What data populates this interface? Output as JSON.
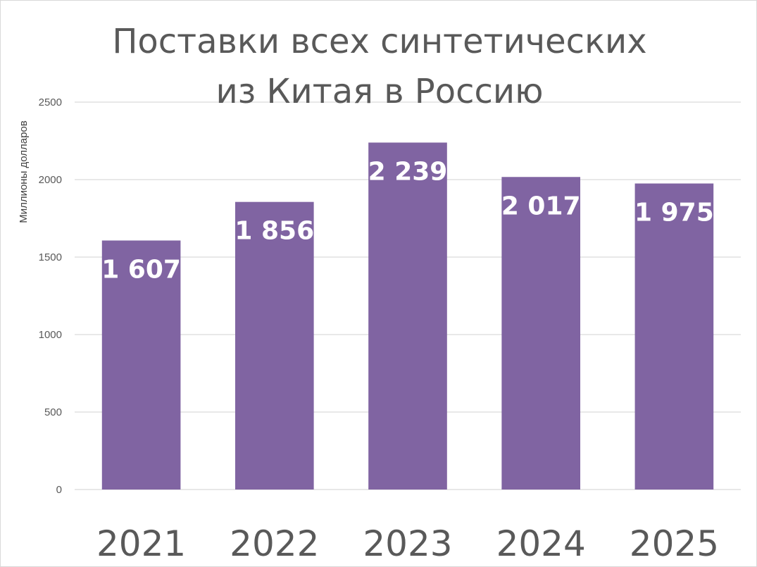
{
  "chart_data": {
    "type": "bar",
    "title": [
      "Поставки всех синтетических",
      "из Китая в Россию"
    ],
    "ylabel": "Миллионы долларов",
    "xlabel": "",
    "categories": [
      "2021",
      "2022",
      "2023",
      "2024",
      "2025"
    ],
    "values": [
      1607,
      1856,
      2239,
      2017,
      1975
    ],
    "data_labels": [
      "1 607",
      "1 856",
      "2 239",
      "2 017",
      "1 975"
    ],
    "yticks": [
      0,
      500,
      1000,
      1500,
      2000,
      2500
    ],
    "ylim": [
      0,
      2500
    ],
    "grid": true,
    "legend": "none",
    "colors": {
      "bar": "#8064a2",
      "grid": "#d9d9d9"
    }
  }
}
